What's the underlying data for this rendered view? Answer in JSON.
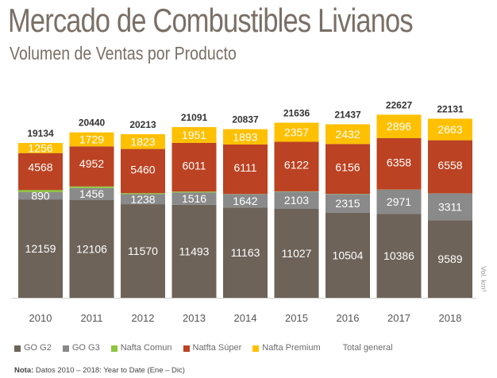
{
  "chart_data": {
    "type": "bar",
    "stacked": true,
    "title": "Mercado de Combustibles Livianos",
    "subtitle": "Volumen de Ventas por Producto",
    "ylabel": "Vol. km³",
    "categories": [
      "2010",
      "2011",
      "2012",
      "2013",
      "2014",
      "2015",
      "2016",
      "2017",
      "2018"
    ],
    "series": [
      {
        "name": "GO G2",
        "color": "#6e6359",
        "values": [
          12159,
          12106,
          11570,
          11493,
          11163,
          11027,
          10504,
          10386,
          9589
        ]
      },
      {
        "name": "GO G3",
        "color": "#8a8a8a",
        "values": [
          890,
          1456,
          1238,
          1516,
          1642,
          2103,
          2315,
          2971,
          3311
        ]
      },
      {
        "name": "Nafta Comun",
        "color": "#8cc63f",
        "values": [
          259,
          197,
          122,
          119,
          27,
          26,
          30,
          16,
          9
        ]
      },
      {
        "name": "Natfta Súper",
        "color": "#bb4222",
        "values": [
          4568,
          4952,
          5460,
          6011,
          6111,
          6122,
          6156,
          6358,
          6558
        ]
      },
      {
        "name": "Nafta Premium",
        "color": "#ffc000",
        "values": [
          1256,
          1729,
          1823,
          1951,
          1893,
          2357,
          2432,
          2896,
          2663
        ]
      }
    ],
    "totals_name": "Total general",
    "totals": [
      19134,
      20440,
      20213,
      21091,
      20837,
      21636,
      21437,
      22627,
      22131
    ],
    "grid": false,
    "legend_position": "bottom"
  },
  "note_label": "Nota:",
  "note_text": " Datos 2010 – 2018: Year to Date (Ene – Dic)"
}
